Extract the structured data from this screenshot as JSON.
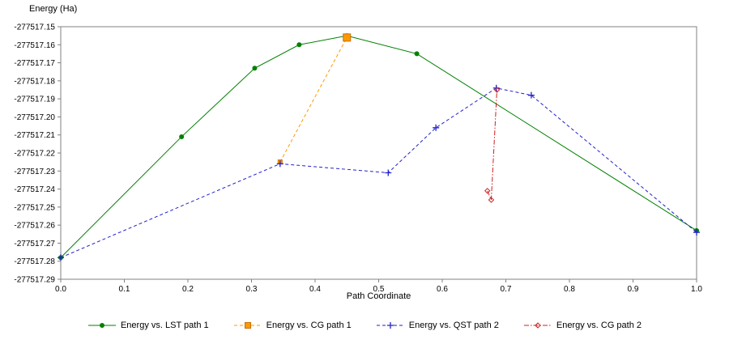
{
  "chart_data": {
    "type": "line",
    "title": "",
    "xlabel": "Path Coordinate",
    "ylabel": "Energy (Ha)",
    "xlim": [
      0.0,
      1.0
    ],
    "ylim": [
      -277517.29,
      -277517.15
    ],
    "xticks": [
      0.0,
      0.1,
      0.2,
      0.3,
      0.4,
      0.5,
      0.6,
      0.7,
      0.8,
      0.9,
      1.0
    ],
    "yticks": [
      -277517.15,
      -277517.16,
      -277517.17,
      -277517.18,
      -277517.19,
      -277517.2,
      -277517.21,
      -277517.22,
      -277517.23,
      -277517.24,
      -277517.25,
      -277517.26,
      -277517.27,
      -277517.28,
      -277517.29
    ],
    "grid": false,
    "legend_position": "bottom",
    "axis_color": "#808080",
    "series": [
      {
        "name": "Energy vs. LST path 1",
        "color": "#008000",
        "line_style": "solid",
        "marker": "circle",
        "marker_size": 6,
        "points": [
          [
            0.0,
            -277517.278
          ],
          [
            0.19,
            -277517.211
          ],
          [
            0.305,
            -277517.173
          ],
          [
            0.375,
            -277517.16
          ],
          [
            0.45,
            -277517.155
          ],
          [
            0.56,
            -277517.165
          ],
          [
            1.0,
            -277517.263
          ]
        ]
      },
      {
        "name": "Energy vs. CG path 1",
        "color": "#ff9900",
        "marker_edge": "#c87000",
        "line_style": "dashed",
        "marker": "square",
        "marker_size": 7,
        "marker_sizes": [
          5,
          9
        ],
        "points": [
          [
            0.345,
            -277517.225
          ],
          [
            0.45,
            -277517.156
          ]
        ]
      },
      {
        "name": "Energy vs. QST path 2",
        "color": "#2222cc",
        "line_style": "dashed",
        "marker": "plus",
        "marker_size": 8,
        "points": [
          [
            0.0,
            -277517.278
          ],
          [
            0.345,
            -277517.226
          ],
          [
            0.515,
            -277517.231
          ],
          [
            0.59,
            -277517.206
          ],
          [
            0.685,
            -277517.184
          ],
          [
            0.74,
            -277517.188
          ],
          [
            1.0,
            -277517.264
          ]
        ]
      },
      {
        "name": "Energy vs. CG path 2",
        "color": "#cc2020",
        "line_style": "dashdot",
        "marker": "diamond",
        "marker_size": 6,
        "points": [
          [
            0.671,
            -277517.241
          ],
          [
            0.677,
            -277517.246
          ],
          [
            0.686,
            -277517.185
          ]
        ]
      }
    ]
  }
}
